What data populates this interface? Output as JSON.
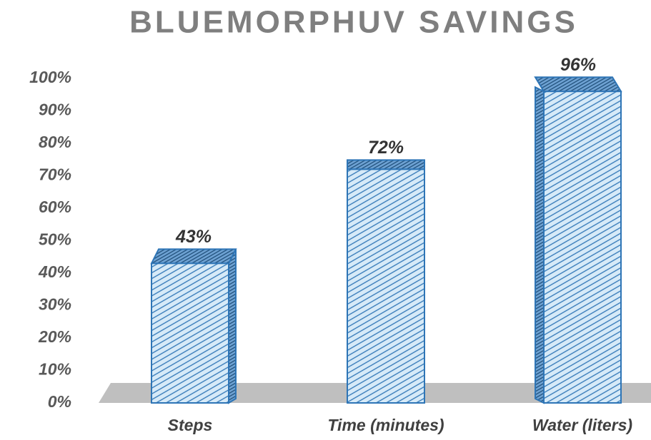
{
  "chart_data": {
    "type": "bar",
    "title": "BLUEMORPHUV SAVINGS",
    "categories": [
      "Steps",
      "Time (minutes)",
      "Water (liters)"
    ],
    "values": [
      43,
      72,
      96
    ],
    "value_labels": [
      "43%",
      "72%",
      "96%"
    ],
    "color": "#2e75b6",
    "ylim": [
      0,
      100
    ],
    "yticks": [
      {
        "value": 0,
        "label": "0%"
      },
      {
        "value": 10,
        "label": "10%"
      },
      {
        "value": 20,
        "label": "20%"
      },
      {
        "value": 30,
        "label": "30%"
      },
      {
        "value": 40,
        "label": "40%"
      },
      {
        "value": 50,
        "label": "50%"
      },
      {
        "value": 60,
        "label": "60%"
      },
      {
        "value": 70,
        "label": "70%"
      },
      {
        "value": 80,
        "label": "80%"
      },
      {
        "value": 90,
        "label": "90%"
      },
      {
        "value": 100,
        "label": "100%"
      }
    ],
    "grid": false
  }
}
